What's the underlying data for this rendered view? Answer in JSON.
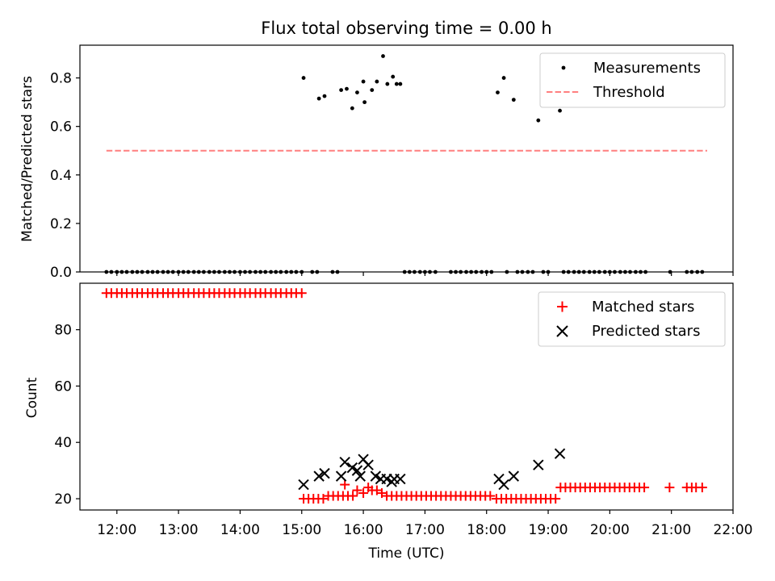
{
  "chart_data": [
    {
      "type": "scatter",
      "title": "Flux total observing time = 0.00 h",
      "xlabel": "",
      "ylabel": "Matched/Predicted stars",
      "x_unit": "time (UTC, hours)",
      "xlim": [
        11.4,
        22.0
      ],
      "ylim": [
        0.0,
        0.935
      ],
      "yticks": [
        0.0,
        0.2,
        0.4,
        0.6,
        0.8
      ],
      "ytick_labels": [
        "0.0",
        "0.2",
        "0.4",
        "0.6",
        "0.8"
      ],
      "xtick_labels_shown": false,
      "grid": false,
      "legend_position": "top-right",
      "series": [
        {
          "name": "Measurements",
          "marker": "dot",
          "color": "#000000",
          "points": [
            [
              11.83,
              0
            ],
            [
              11.91,
              0
            ],
            [
              12.0,
              0
            ],
            [
              12.08,
              0
            ],
            [
              12.16,
              0
            ],
            [
              12.25,
              0
            ],
            [
              12.33,
              0
            ],
            [
              12.41,
              0
            ],
            [
              12.5,
              0
            ],
            [
              12.58,
              0
            ],
            [
              12.66,
              0
            ],
            [
              12.75,
              0
            ],
            [
              12.83,
              0
            ],
            [
              12.91,
              0
            ],
            [
              13.0,
              0
            ],
            [
              13.08,
              0
            ],
            [
              13.16,
              0
            ],
            [
              13.25,
              0
            ],
            [
              13.33,
              0
            ],
            [
              13.41,
              0
            ],
            [
              13.5,
              0
            ],
            [
              13.58,
              0
            ],
            [
              13.66,
              0
            ],
            [
              13.75,
              0
            ],
            [
              13.83,
              0
            ],
            [
              13.91,
              0
            ],
            [
              14.0,
              0
            ],
            [
              14.08,
              0
            ],
            [
              14.16,
              0
            ],
            [
              14.25,
              0
            ],
            [
              14.33,
              0
            ],
            [
              14.41,
              0
            ],
            [
              14.5,
              0
            ],
            [
              14.58,
              0
            ],
            [
              14.66,
              0
            ],
            [
              14.75,
              0
            ],
            [
              14.83,
              0
            ],
            [
              14.91,
              0
            ],
            [
              15.0,
              0
            ],
            [
              15.17,
              0
            ],
            [
              15.25,
              0
            ],
            [
              15.5,
              0
            ],
            [
              15.58,
              0
            ],
            [
              16.67,
              0
            ],
            [
              16.75,
              0
            ],
            [
              16.83,
              0
            ],
            [
              16.92,
              0
            ],
            [
              17.0,
              0
            ],
            [
              17.08,
              0
            ],
            [
              17.17,
              0
            ],
            [
              17.42,
              0
            ],
            [
              17.5,
              0
            ],
            [
              17.58,
              0
            ],
            [
              17.67,
              0
            ],
            [
              17.75,
              0
            ],
            [
              17.83,
              0
            ],
            [
              17.92,
              0
            ],
            [
              18.0,
              0
            ],
            [
              18.08,
              0
            ],
            [
              18.33,
              0
            ],
            [
              18.5,
              0
            ],
            [
              18.58,
              0
            ],
            [
              18.67,
              0
            ],
            [
              18.75,
              0
            ],
            [
              18.92,
              0
            ],
            [
              19.0,
              0
            ],
            [
              19.25,
              0
            ],
            [
              19.33,
              0
            ],
            [
              19.42,
              0
            ],
            [
              19.5,
              0
            ],
            [
              19.58,
              0
            ],
            [
              19.67,
              0
            ],
            [
              19.75,
              0
            ],
            [
              19.83,
              0
            ],
            [
              19.92,
              0
            ],
            [
              20.0,
              0
            ],
            [
              20.08,
              0
            ],
            [
              20.17,
              0
            ],
            [
              20.25,
              0
            ],
            [
              20.33,
              0
            ],
            [
              20.42,
              0
            ],
            [
              20.5,
              0
            ],
            [
              20.58,
              0
            ],
            [
              20.98,
              0
            ],
            [
              21.25,
              0
            ],
            [
              21.33,
              0
            ],
            [
              21.42,
              0
            ],
            [
              21.5,
              0
            ],
            [
              15.03,
              0.8
            ],
            [
              15.28,
              0.715
            ],
            [
              15.37,
              0.725
            ],
            [
              15.64,
              0.75
            ],
            [
              15.73,
              0.755
            ],
            [
              15.82,
              0.675
            ],
            [
              15.9,
              0.74
            ],
            [
              16.0,
              0.785
            ],
            [
              16.02,
              0.7
            ],
            [
              16.14,
              0.75
            ],
            [
              16.22,
              0.785
            ],
            [
              16.32,
              0.89
            ],
            [
              16.39,
              0.775
            ],
            [
              16.48,
              0.805
            ],
            [
              16.54,
              0.775
            ],
            [
              16.6,
              0.775
            ],
            [
              18.18,
              0.74
            ],
            [
              18.28,
              0.8
            ],
            [
              18.44,
              0.71
            ],
            [
              18.84,
              0.625
            ],
            [
              19.19,
              0.665
            ]
          ]
        },
        {
          "name": "Threshold",
          "style": "dashed",
          "color": "#ff7f7f",
          "x": [
            11.83,
            21.58
          ],
          "y": [
            0.5,
            0.5
          ]
        }
      ]
    },
    {
      "type": "scatter",
      "title": "",
      "xlabel": "Time (UTC)",
      "ylabel": "Count",
      "x_unit": "time (UTC, hours)",
      "xlim": [
        11.4,
        22.0
      ],
      "ylim": [
        16.0,
        96.5
      ],
      "xticks": [
        12,
        13,
        14,
        15,
        16,
        17,
        18,
        19,
        20,
        21,
        22
      ],
      "xtick_labels": [
        "12:00",
        "13:00",
        "14:00",
        "15:00",
        "16:00",
        "17:00",
        "18:00",
        "19:00",
        "20:00",
        "21:00",
        "22:00"
      ],
      "yticks": [
        20,
        40,
        60,
        80
      ],
      "ytick_labels": [
        "20",
        "40",
        "60",
        "80"
      ],
      "grid": false,
      "legend_position": "top-right",
      "series": [
        {
          "name": "Matched stars",
          "marker": "plus",
          "color": "#ff0000",
          "points": [
            [
              11.83,
              93
            ],
            [
              11.91,
              93
            ],
            [
              12.0,
              93
            ],
            [
              12.08,
              93
            ],
            [
              12.16,
              93
            ],
            [
              12.25,
              93
            ],
            [
              12.33,
              93
            ],
            [
              12.41,
              93
            ],
            [
              12.5,
              93
            ],
            [
              12.58,
              93
            ],
            [
              12.66,
              93
            ],
            [
              12.75,
              93
            ],
            [
              12.83,
              93
            ],
            [
              12.91,
              93
            ],
            [
              13.0,
              93
            ],
            [
              13.08,
              93
            ],
            [
              13.16,
              93
            ],
            [
              13.25,
              93
            ],
            [
              13.33,
              93
            ],
            [
              13.41,
              93
            ],
            [
              13.5,
              93
            ],
            [
              13.58,
              93
            ],
            [
              13.66,
              93
            ],
            [
              13.75,
              93
            ],
            [
              13.83,
              93
            ],
            [
              13.91,
              93
            ],
            [
              14.0,
              93
            ],
            [
              14.08,
              93
            ],
            [
              14.16,
              93
            ],
            [
              14.25,
              93
            ],
            [
              14.33,
              93
            ],
            [
              14.41,
              93
            ],
            [
              14.5,
              93
            ],
            [
              14.58,
              93
            ],
            [
              14.66,
              93
            ],
            [
              14.75,
              93
            ],
            [
              14.83,
              93
            ],
            [
              14.91,
              93
            ],
            [
              15.0,
              93
            ],
            [
              15.03,
              20
            ],
            [
              15.11,
              20
            ],
            [
              15.19,
              20
            ],
            [
              15.27,
              20
            ],
            [
              15.35,
              20
            ],
            [
              15.43,
              21
            ],
            [
              15.51,
              21
            ],
            [
              15.59,
              21
            ],
            [
              15.67,
              21
            ],
            [
              15.7,
              25
            ],
            [
              15.75,
              21
            ],
            [
              15.83,
              21
            ],
            [
              15.9,
              23
            ],
            [
              16.0,
              22
            ],
            [
              16.08,
              24
            ],
            [
              16.14,
              23
            ],
            [
              16.22,
              23
            ],
            [
              16.3,
              22
            ],
            [
              16.38,
              21
            ],
            [
              16.46,
              21
            ],
            [
              16.54,
              21
            ],
            [
              16.62,
              21
            ],
            [
              16.7,
              21
            ],
            [
              16.78,
              21
            ],
            [
              16.86,
              21
            ],
            [
              16.94,
              21
            ],
            [
              17.02,
              21
            ],
            [
              17.1,
              21
            ],
            [
              17.18,
              21
            ],
            [
              17.26,
              21
            ],
            [
              17.34,
              21
            ],
            [
              17.42,
              21
            ],
            [
              17.5,
              21
            ],
            [
              17.58,
              21
            ],
            [
              17.66,
              21
            ],
            [
              17.74,
              21
            ],
            [
              17.82,
              21
            ],
            [
              17.9,
              21
            ],
            [
              17.98,
              21
            ],
            [
              18.06,
              21
            ],
            [
              18.16,
              20
            ],
            [
              18.24,
              20
            ],
            [
              18.32,
              20
            ],
            [
              18.4,
              20
            ],
            [
              18.48,
              20
            ],
            [
              18.56,
              20
            ],
            [
              18.64,
              20
            ],
            [
              18.72,
              20
            ],
            [
              18.8,
              20
            ],
            [
              18.88,
              20
            ],
            [
              18.96,
              20
            ],
            [
              19.04,
              20
            ],
            [
              19.12,
              20
            ],
            [
              19.2,
              24
            ],
            [
              19.28,
              24
            ],
            [
              19.36,
              24
            ],
            [
              19.44,
              24
            ],
            [
              19.52,
              24
            ],
            [
              19.6,
              24
            ],
            [
              19.68,
              24
            ],
            [
              19.76,
              24
            ],
            [
              19.84,
              24
            ],
            [
              19.92,
              24
            ],
            [
              20.0,
              24
            ],
            [
              20.08,
              24
            ],
            [
              20.16,
              24
            ],
            [
              20.24,
              24
            ],
            [
              20.32,
              24
            ],
            [
              20.4,
              24
            ],
            [
              20.48,
              24
            ],
            [
              20.56,
              24
            ],
            [
              20.97,
              24
            ],
            [
              21.25,
              24
            ],
            [
              21.33,
              24
            ],
            [
              21.4,
              24
            ],
            [
              21.5,
              24
            ]
          ]
        },
        {
          "name": "Predicted stars",
          "marker": "x",
          "color": "#000000",
          "points": [
            [
              15.03,
              25
            ],
            [
              15.28,
              28
            ],
            [
              15.37,
              29
            ],
            [
              15.64,
              28
            ],
            [
              15.7,
              33
            ],
            [
              15.82,
              31
            ],
            [
              15.9,
              30
            ],
            [
              15.95,
              28
            ],
            [
              16.0,
              34
            ],
            [
              16.08,
              32
            ],
            [
              16.2,
              28
            ],
            [
              16.28,
              27
            ],
            [
              16.38,
              27
            ],
            [
              16.46,
              26
            ],
            [
              16.5,
              27
            ],
            [
              16.6,
              27
            ],
            [
              18.2,
              27
            ],
            [
              18.28,
              25
            ],
            [
              18.44,
              28
            ],
            [
              18.84,
              32
            ],
            [
              19.19,
              36
            ]
          ]
        }
      ]
    }
  ]
}
